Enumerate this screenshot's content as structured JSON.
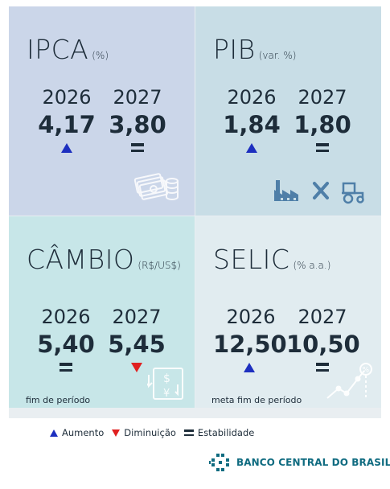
{
  "panels": {
    "ipca": {
      "title": "IPCA",
      "unit": "(%)",
      "year1": "2026",
      "year2": "2027",
      "value1": "4,17",
      "value2": "3,80",
      "trend1": "up",
      "trend2": "equal",
      "note": "",
      "icon": "money-stack-icon"
    },
    "pib": {
      "title": "PIB",
      "unit": "(var. %)",
      "year1": "2026",
      "year2": "2027",
      "value1": "1,84",
      "value2": "1,80",
      "trend1": "up",
      "trend2": "equal",
      "note": "",
      "icon": "industry-tools-tractor-icon"
    },
    "cambio": {
      "title": "CÂMBIO",
      "unit": "(R$/US$)",
      "year1": "2026",
      "year2": "2027",
      "value1": "5,40",
      "value2": "5,45",
      "trend1": "equal",
      "trend2": "down",
      "note": "fim de período",
      "icon": "currency-exchange-icon"
    },
    "selic": {
      "title": "SELIC",
      "unit": "(% a.a.)",
      "year1": "2026",
      "year2": "2027",
      "value1": "12,50",
      "value2": "10,50",
      "trend1": "up",
      "trend2": "equal",
      "note": "meta fim de período",
      "icon": "percent-chart-icon"
    }
  },
  "legend": {
    "up": "Aumento",
    "down": "Diminuição",
    "equal": "Estabilidade"
  },
  "brand": {
    "name": "BANCO CENTRAL DO BRASIL",
    "icon": "bcb-logo-icon"
  },
  "colors": {
    "ipca_bg": "#cbd6e9",
    "pib_bg": "#c8dde6",
    "cambio_bg": "#c7e6e8",
    "selic_bg": "#e1ecf0",
    "up": "#1d2fbf",
    "down": "#e02020",
    "text": "#1e2d3a",
    "brand": "#0f6b80"
  }
}
